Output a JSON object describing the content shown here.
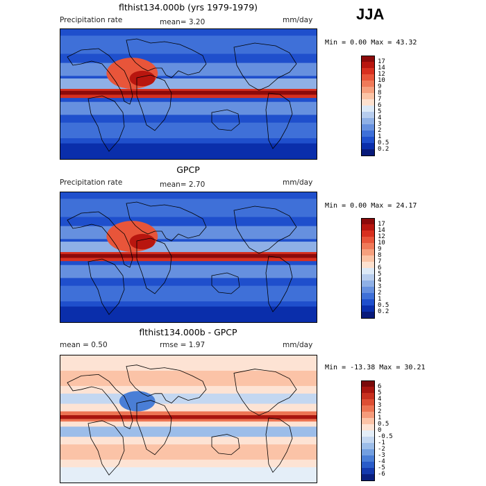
{
  "season": "JJA",
  "panels": [
    {
      "title": "flthist134.000b (yrs 1979-1979)",
      "variable": "Precipitation rate",
      "stat_text": "mean=   3.20",
      "units": "mm/day",
      "range_text": "Min =    0.00 Max =  43.32",
      "scheme": "abs",
      "colorbar": {
        "labels": [
          "17",
          "14",
          "12",
          "10",
          "9",
          "8",
          "7",
          "6",
          "5",
          "4",
          "3",
          "2",
          "1",
          "0.5",
          "0.2"
        ],
        "colors": [
          "#8c0a0a",
          "#b8160f",
          "#d8301f",
          "#e8553a",
          "#f07a59",
          "#f6a07e",
          "#fbc4a6",
          "#fde1cf",
          "#dce9f7",
          "#b7cdee",
          "#8fb0e6",
          "#6690df",
          "#3f70d8",
          "#1f4fcc",
          "#0a2eab",
          "#081a7a"
        ]
      }
    },
    {
      "title": "GPCP",
      "variable": "Precipitation rate",
      "stat_text": "mean=   2.70",
      "units": "mm/day",
      "range_text": "Min =    0.00 Max =  24.17",
      "scheme": "abs",
      "colorbar": {
        "labels": [
          "17",
          "14",
          "12",
          "10",
          "9",
          "8",
          "7",
          "6",
          "5",
          "4",
          "3",
          "2",
          "1",
          "0.5",
          "0.2"
        ],
        "colors": [
          "#8c0a0a",
          "#b8160f",
          "#d8301f",
          "#e8553a",
          "#f07a59",
          "#f6a07e",
          "#fbc4a6",
          "#fde1cf",
          "#dce9f7",
          "#b7cdee",
          "#8fb0e6",
          "#6690df",
          "#3f70d8",
          "#1f4fcc",
          "#0a2eab",
          "#081a7a"
        ]
      }
    },
    {
      "title": "flthist134.000b - GPCP",
      "stat_text": "mean =    0.50",
      "rmse_text": "rmse =    1.97",
      "units": "mm/day",
      "range_text": "Min = -13.38 Max =  30.21",
      "scheme": "diff",
      "colorbar": {
        "labels": [
          "6",
          "5",
          "4",
          "3",
          "2",
          "1",
          "0.5",
          "0",
          "-0.5",
          "-1",
          "-2",
          "-3",
          "-4",
          "-5",
          "-6"
        ],
        "colors": [
          "#7a0a0a",
          "#a8150f",
          "#c8301f",
          "#dd4f34",
          "#ec7453",
          "#f59b7b",
          "#fbc3a7",
          "#fde3d4",
          "#e4eef8",
          "#c3d7f1",
          "#9cbde9",
          "#739fe0",
          "#4a7ed6",
          "#2a5cc9",
          "#1439ad",
          "#0a1f7e"
        ]
      }
    }
  ]
}
